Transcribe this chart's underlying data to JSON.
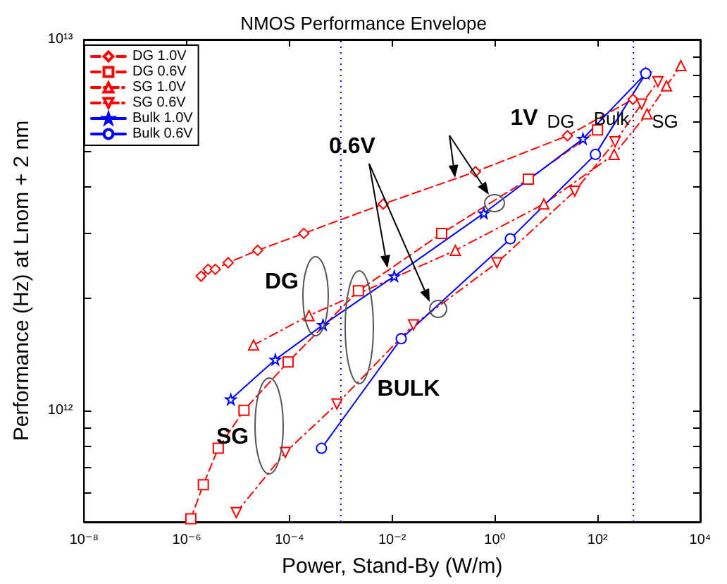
{
  "chart_data": {
    "type": "line",
    "title": "NMOS Performance Envelope",
    "xlabel": "Power, Stand-By (W/m)",
    "ylabel": "Performance (Hz) at Lnom + 2 nm",
    "log": "xy",
    "grid": false,
    "legend": "top left",
    "xlim": [
      1e-08,
      10000.0
    ],
    "ylim": [
      500000000000.0,
      10000000000000.0
    ],
    "xticks": [
      {
        "value": 1e-08,
        "label": "10⁻⁸"
      },
      {
        "value": 1e-06,
        "label": "10⁻⁶"
      },
      {
        "value": 0.0001,
        "label": "10⁻⁴"
      },
      {
        "value": 0.01,
        "label": "10⁻²"
      },
      {
        "value": 1,
        "label": "10⁰"
      },
      {
        "value": 100,
        "label": "10²"
      },
      {
        "value": 10000.0,
        "label": "10⁴"
      }
    ],
    "yticks": [
      {
        "value": 600000000000.0,
        "label": null
      },
      {
        "value": 700000000000.0,
        "label": null
      },
      {
        "value": 800000000000.0,
        "label": null
      },
      {
        "value": 900000000000.0,
        "label": null
      },
      {
        "value": 1000000000000.0,
        "label": "10¹²"
      },
      {
        "value": 2000000000000.0,
        "label": null
      },
      {
        "value": 3000000000000.0,
        "label": null
      },
      {
        "value": 4000000000000.0,
        "label": null
      },
      {
        "value": 5000000000000.0,
        "label": null
      },
      {
        "value": 6000000000000.0,
        "label": null
      },
      {
        "value": 7000000000000.0,
        "label": null
      },
      {
        "value": 8000000000000.0,
        "label": null
      },
      {
        "value": 9000000000000.0,
        "label": null
      },
      {
        "value": 10000000000000.0,
        "label": "10¹³"
      }
    ],
    "series": [
      {
        "name": "DG 1.0V",
        "color": "#ff0000",
        "marker": "diamond",
        "line_style": "dashed",
        "x": [
          1.9e-06,
          2.6e-06,
          3.6e-06,
          6.4e-06,
          2.4e-05,
          0.00019,
          0.0067,
          0.42,
          26,
          490
        ],
        "values": [
          2300000000000.0,
          2400000000000.0,
          2400000000000.0,
          2500000000000.0,
          2700000000000.0,
          3000000000000.0,
          3600000000000.0,
          4400000000000.0,
          5500000000000.0,
          6900000000000.0
        ]
      },
      {
        "name": "DG 0.6V",
        "color": "#ff0000",
        "marker": "square",
        "line_style": "dashed",
        "x": [
          1.2e-06,
          2.1e-06,
          4.1e-06,
          1.3e-05,
          9.4e-05,
          0.0022,
          0.092,
          4.5,
          100
        ],
        "values": [
          510000000000.0,
          630000000000.0,
          790000000000.0,
          1000000000000.0,
          1350000000000.0,
          2100000000000.0,
          3000000000000.0,
          4200000000000.0,
          5700000000000.0
        ]
      },
      {
        "name": "SG 1.0V",
        "color": "#ff0000",
        "marker": "triangle",
        "line_style": "dashdot",
        "x": [
          2e-05,
          0.00024,
          0.17,
          9.0,
          210,
          920,
          2200,
          4200
        ],
        "values": [
          1500000000000.0,
          1800000000000.0,
          2700000000000.0,
          3600000000000.0,
          4900000000000.0,
          6300000000000.0,
          7500000000000.0,
          8500000000000.0
        ]
      },
      {
        "name": "SG 0.6V",
        "color": "#ff0000",
        "marker": "triangle_down",
        "line_style": "dashdot",
        "x": [
          9.2e-06,
          8.3e-05,
          0.00084,
          0.026,
          1.1,
          36,
          220,
          720,
          1500
        ],
        "values": [
          530000000000.0,
          770000000000.0,
          1040000000000.0,
          1700000000000.0,
          2500000000000.0,
          3900000000000.0,
          5300000000000.0,
          6700000000000.0,
          7700000000000.0
        ]
      },
      {
        "name": "Bulk 1.0V",
        "color": "#0000ff",
        "marker": "star",
        "line_style": "solid",
        "x": [
          7.2e-06,
          5.3e-05,
          0.00045,
          0.011,
          0.61,
          52,
          870
        ],
        "values": [
          1070000000000.0,
          1370000000000.0,
          1700000000000.0,
          2300000000000.0,
          3400000000000.0,
          5400000000000.0,
          8100000000000.0
        ]
      },
      {
        "name": "Bulk 0.6V",
        "color": "#0000ff",
        "marker": "circle",
        "line_style": "solid",
        "x": [
          0.00042,
          0.015,
          2.0,
          91,
          870
        ],
        "values": [
          790000000000.0,
          1560000000000.0,
          2900000000000.0,
          4900000000000.0,
          8100000000000.0
        ]
      }
    ],
    "ref_lines": [
      {
        "axis": "x",
        "value": 0.001,
        "color": "#0000ff",
        "line_style": "dotted"
      },
      {
        "axis": "x",
        "value": 500,
        "color": "#0000ff",
        "line_style": "dotted"
      }
    ],
    "annotations": [
      "1V",
      "0.6V",
      "DG",
      "SG",
      "BULK",
      "DG",
      "Bulk",
      "SG"
    ]
  }
}
